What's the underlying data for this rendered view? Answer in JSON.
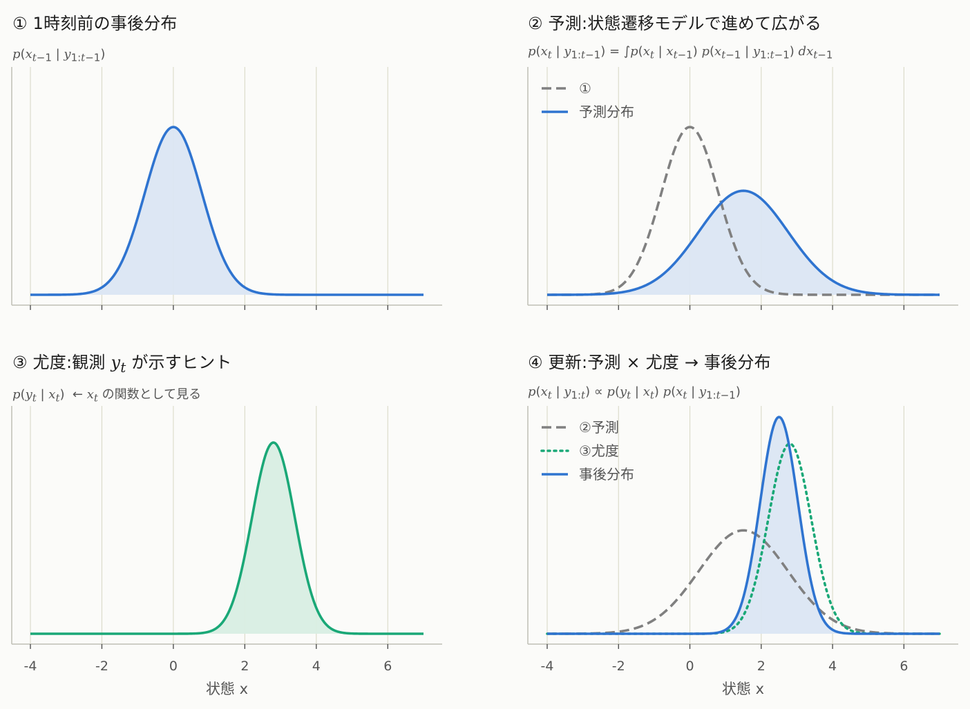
{
  "colors": {
    "blue": "#2f74d0",
    "blue_fill": "#dbe6f3",
    "green": "#1aa877",
    "green_fill": "#d8eee3",
    "gray": "#808080",
    "grid": "#dcdccb",
    "spine": "#bfbfb5"
  },
  "chart_data": [
    {
      "type": "line",
      "title": "① 1時刻前の事後分布",
      "subtitle": "p(x_{t−1} | y_{1:t−1})",
      "xlim": [
        -4,
        7
      ],
      "xticks": [
        -4,
        -2,
        0,
        2,
        4,
        6
      ],
      "show_tick_labels": false,
      "xlabel": "",
      "grid": "vertical",
      "series": [
        {
          "curve": "gauss",
          "mean": 0,
          "sd": 0.8,
          "peak": 0.5,
          "style": "solid",
          "color": "blue",
          "fill": "blue_fill"
        }
      ],
      "legend": []
    },
    {
      "type": "line",
      "title": "② 予測:状態遷移モデルで進めて広がる",
      "subtitle": "p(x_t | y_{1:t−1}) = ∫p(x_t | x_{t−1}) p(x_{t−1} | y_{1:t−1}) dx_{t−1}",
      "xlim": [
        -4,
        7
      ],
      "xticks": [
        -4,
        -2,
        0,
        2,
        4,
        6
      ],
      "show_tick_labels": false,
      "xlabel": "",
      "grid": "vertical",
      "series": [
        {
          "name": "①",
          "curve": "gauss",
          "mean": 0,
          "sd": 0.8,
          "peak": 0.5,
          "style": "dashed",
          "color": "gray"
        },
        {
          "name": "予測分布",
          "curve": "gauss",
          "mean": 1.5,
          "sd": 1.25,
          "peak": 0.31,
          "style": "solid",
          "color": "blue",
          "fill": "blue_fill"
        }
      ],
      "legend": [
        "①",
        "予測分布"
      ],
      "legend_position": "top-left"
    },
    {
      "type": "line",
      "title": "③ 尤度:観測 y_t が示すヒント",
      "subtitle": "p(y_t | x_t)  ← x_t の関数として見る",
      "xlim": [
        -4,
        7
      ],
      "xticks": [
        -4,
        -2,
        0,
        2,
        4,
        6
      ],
      "tick_labels": [
        "-4",
        "-2",
        "0",
        "2",
        "4",
        "6"
      ],
      "show_tick_labels": true,
      "xlabel": "状態 x",
      "grid": "vertical",
      "series": [
        {
          "curve": "gauss",
          "mean": 2.8,
          "sd": 0.6,
          "peak": 0.5,
          "style": "solid",
          "color": "green",
          "fill": "green_fill"
        }
      ],
      "legend": []
    },
    {
      "type": "line",
      "title": "④ 更新:予測 × 尤度 → 事後分布",
      "subtitle": "p(x_t | y_{1:t}) ∝ p(y_t | x_t) p(x_t | y_{1:t−1})",
      "xlim": [
        -4,
        7
      ],
      "xticks": [
        -4,
        -2,
        0,
        2,
        4,
        6
      ],
      "tick_labels": [
        "-4",
        "-2",
        "0",
        "2",
        "4",
        "6"
      ],
      "show_tick_labels": true,
      "xlabel": "状態 x",
      "grid": "vertical",
      "series": [
        {
          "name": "②予測",
          "curve": "gauss",
          "mean": 1.5,
          "sd": 1.25,
          "peak": 0.31,
          "style": "dashed",
          "color": "gray"
        },
        {
          "name": "③尤度",
          "curve": "gauss",
          "mean": 2.8,
          "sd": 0.6,
          "peak": 0.57,
          "style": "dotted",
          "color": "green"
        },
        {
          "name": "事後分布",
          "curve": "gauss",
          "mean": 2.5,
          "sd": 0.53,
          "peak": 0.65,
          "style": "solid",
          "color": "blue",
          "fill": "blue_fill"
        }
      ],
      "legend": [
        "②予測",
        "③尤度",
        "事後分布"
      ],
      "legend_position": "top-left"
    }
  ]
}
